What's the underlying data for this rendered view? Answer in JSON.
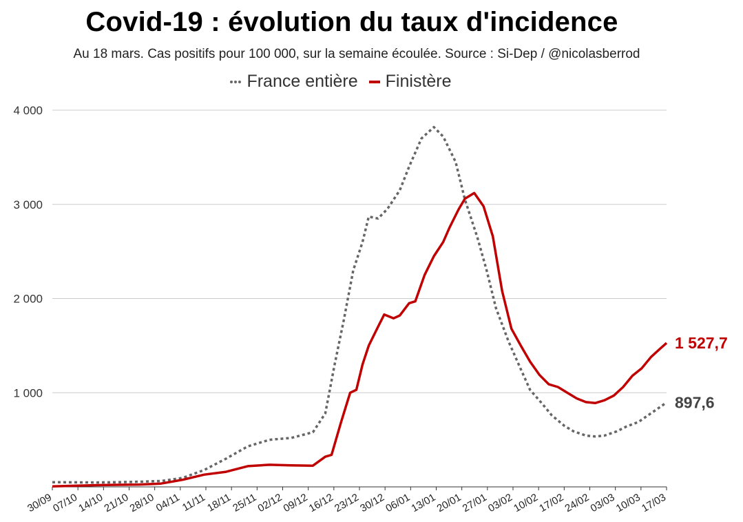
{
  "chart_data": {
    "type": "line",
    "title": "Covid-19 : évolution du taux d'incidence",
    "subtitle": "Au 18 mars. Cas positifs pour 100 000, sur la semaine écoulée. Source : Si-Dep / @nicolasberrod",
    "xlabel": "",
    "ylabel": "",
    "ylim": [
      0,
      4000
    ],
    "yticks": [
      {
        "value": 1000,
        "label": "1 000"
      },
      {
        "value": 2000,
        "label": "2 000"
      },
      {
        "value": 3000,
        "label": "3 000"
      },
      {
        "value": 4000,
        "label": "4 000"
      }
    ],
    "x_tick_labels": [
      "30/09",
      "07/10",
      "14/10",
      "21/10",
      "28/10",
      "04/11",
      "11/11",
      "18/11",
      "25/11",
      "02/12",
      "09/12",
      "16/12",
      "23/12",
      "30/12",
      "06/01",
      "13/01",
      "20/01",
      "27/01",
      "03/02",
      "10/02",
      "17/02",
      "24/02",
      "03/03",
      "10/03",
      "17/03"
    ],
    "legend_position": "top-center",
    "grid": true,
    "series": [
      {
        "name": "France entière",
        "color": "#666666",
        "style": "dotted",
        "end_label": "897,6",
        "points": [
          [
            0,
            50
          ],
          [
            7,
            48
          ],
          [
            14,
            47
          ],
          [
            21,
            50
          ],
          [
            28,
            55
          ],
          [
            35,
            62
          ],
          [
            42,
            95
          ],
          [
            49,
            180
          ],
          [
            56,
            300
          ],
          [
            63,
            430
          ],
          [
            70,
            500
          ],
          [
            77,
            520
          ],
          [
            84,
            580
          ],
          [
            88,
            780
          ],
          [
            91,
            1300
          ],
          [
            94,
            1780
          ],
          [
            97,
            2300
          ],
          [
            100,
            2600
          ],
          [
            102,
            2870
          ],
          [
            105,
            2850
          ],
          [
            108,
            2950
          ],
          [
            112,
            3150
          ],
          [
            115,
            3400
          ],
          [
            119,
            3700
          ],
          [
            123,
            3820
          ],
          [
            126,
            3720
          ],
          [
            130,
            3450
          ],
          [
            133,
            3050
          ],
          [
            137,
            2650
          ],
          [
            140,
            2300
          ],
          [
            143,
            1900
          ],
          [
            147,
            1550
          ],
          [
            151,
            1250
          ],
          [
            154,
            1030
          ],
          [
            158,
            880
          ],
          [
            161,
            760
          ],
          [
            165,
            650
          ],
          [
            168,
            590
          ],
          [
            172,
            545
          ],
          [
            175,
            535
          ],
          [
            178,
            545
          ],
          [
            182,
            590
          ],
          [
            185,
            640
          ],
          [
            189,
            690
          ],
          [
            192,
            760
          ],
          [
            196,
            850
          ],
          [
            198,
            897.6
          ]
        ]
      },
      {
        "name": "Finistère",
        "color": "#c00000",
        "style": "solid",
        "end_label": "1 527,7",
        "points": [
          [
            0,
            5
          ],
          [
            7,
            12
          ],
          [
            14,
            18
          ],
          [
            21,
            22
          ],
          [
            28,
            25
          ],
          [
            35,
            35
          ],
          [
            42,
            75
          ],
          [
            49,
            130
          ],
          [
            56,
            160
          ],
          [
            63,
            220
          ],
          [
            70,
            235
          ],
          [
            77,
            228
          ],
          [
            84,
            225
          ],
          [
            88,
            320
          ],
          [
            90,
            340
          ],
          [
            93,
            680
          ],
          [
            96,
            1000
          ],
          [
            98,
            1030
          ],
          [
            100,
            1300
          ],
          [
            102,
            1500
          ],
          [
            105,
            1700
          ],
          [
            107,
            1830
          ],
          [
            110,
            1790
          ],
          [
            112,
            1820
          ],
          [
            115,
            1950
          ],
          [
            117,
            1970
          ],
          [
            120,
            2250
          ],
          [
            123,
            2450
          ],
          [
            126,
            2600
          ],
          [
            128,
            2750
          ],
          [
            131,
            2950
          ],
          [
            133,
            3060
          ],
          [
            136,
            3120
          ],
          [
            139,
            2980
          ],
          [
            142,
            2660
          ],
          [
            145,
            2080
          ],
          [
            148,
            1680
          ],
          [
            151,
            1500
          ],
          [
            154,
            1330
          ],
          [
            157,
            1190
          ],
          [
            160,
            1090
          ],
          [
            163,
            1060
          ],
          [
            166,
            1000
          ],
          [
            169,
            940
          ],
          [
            172,
            900
          ],
          [
            175,
            890
          ],
          [
            178,
            920
          ],
          [
            181,
            970
          ],
          [
            184,
            1060
          ],
          [
            187,
            1180
          ],
          [
            190,
            1260
          ],
          [
            193,
            1380
          ],
          [
            196,
            1470
          ],
          [
            198,
            1527.7
          ]
        ]
      }
    ]
  }
}
